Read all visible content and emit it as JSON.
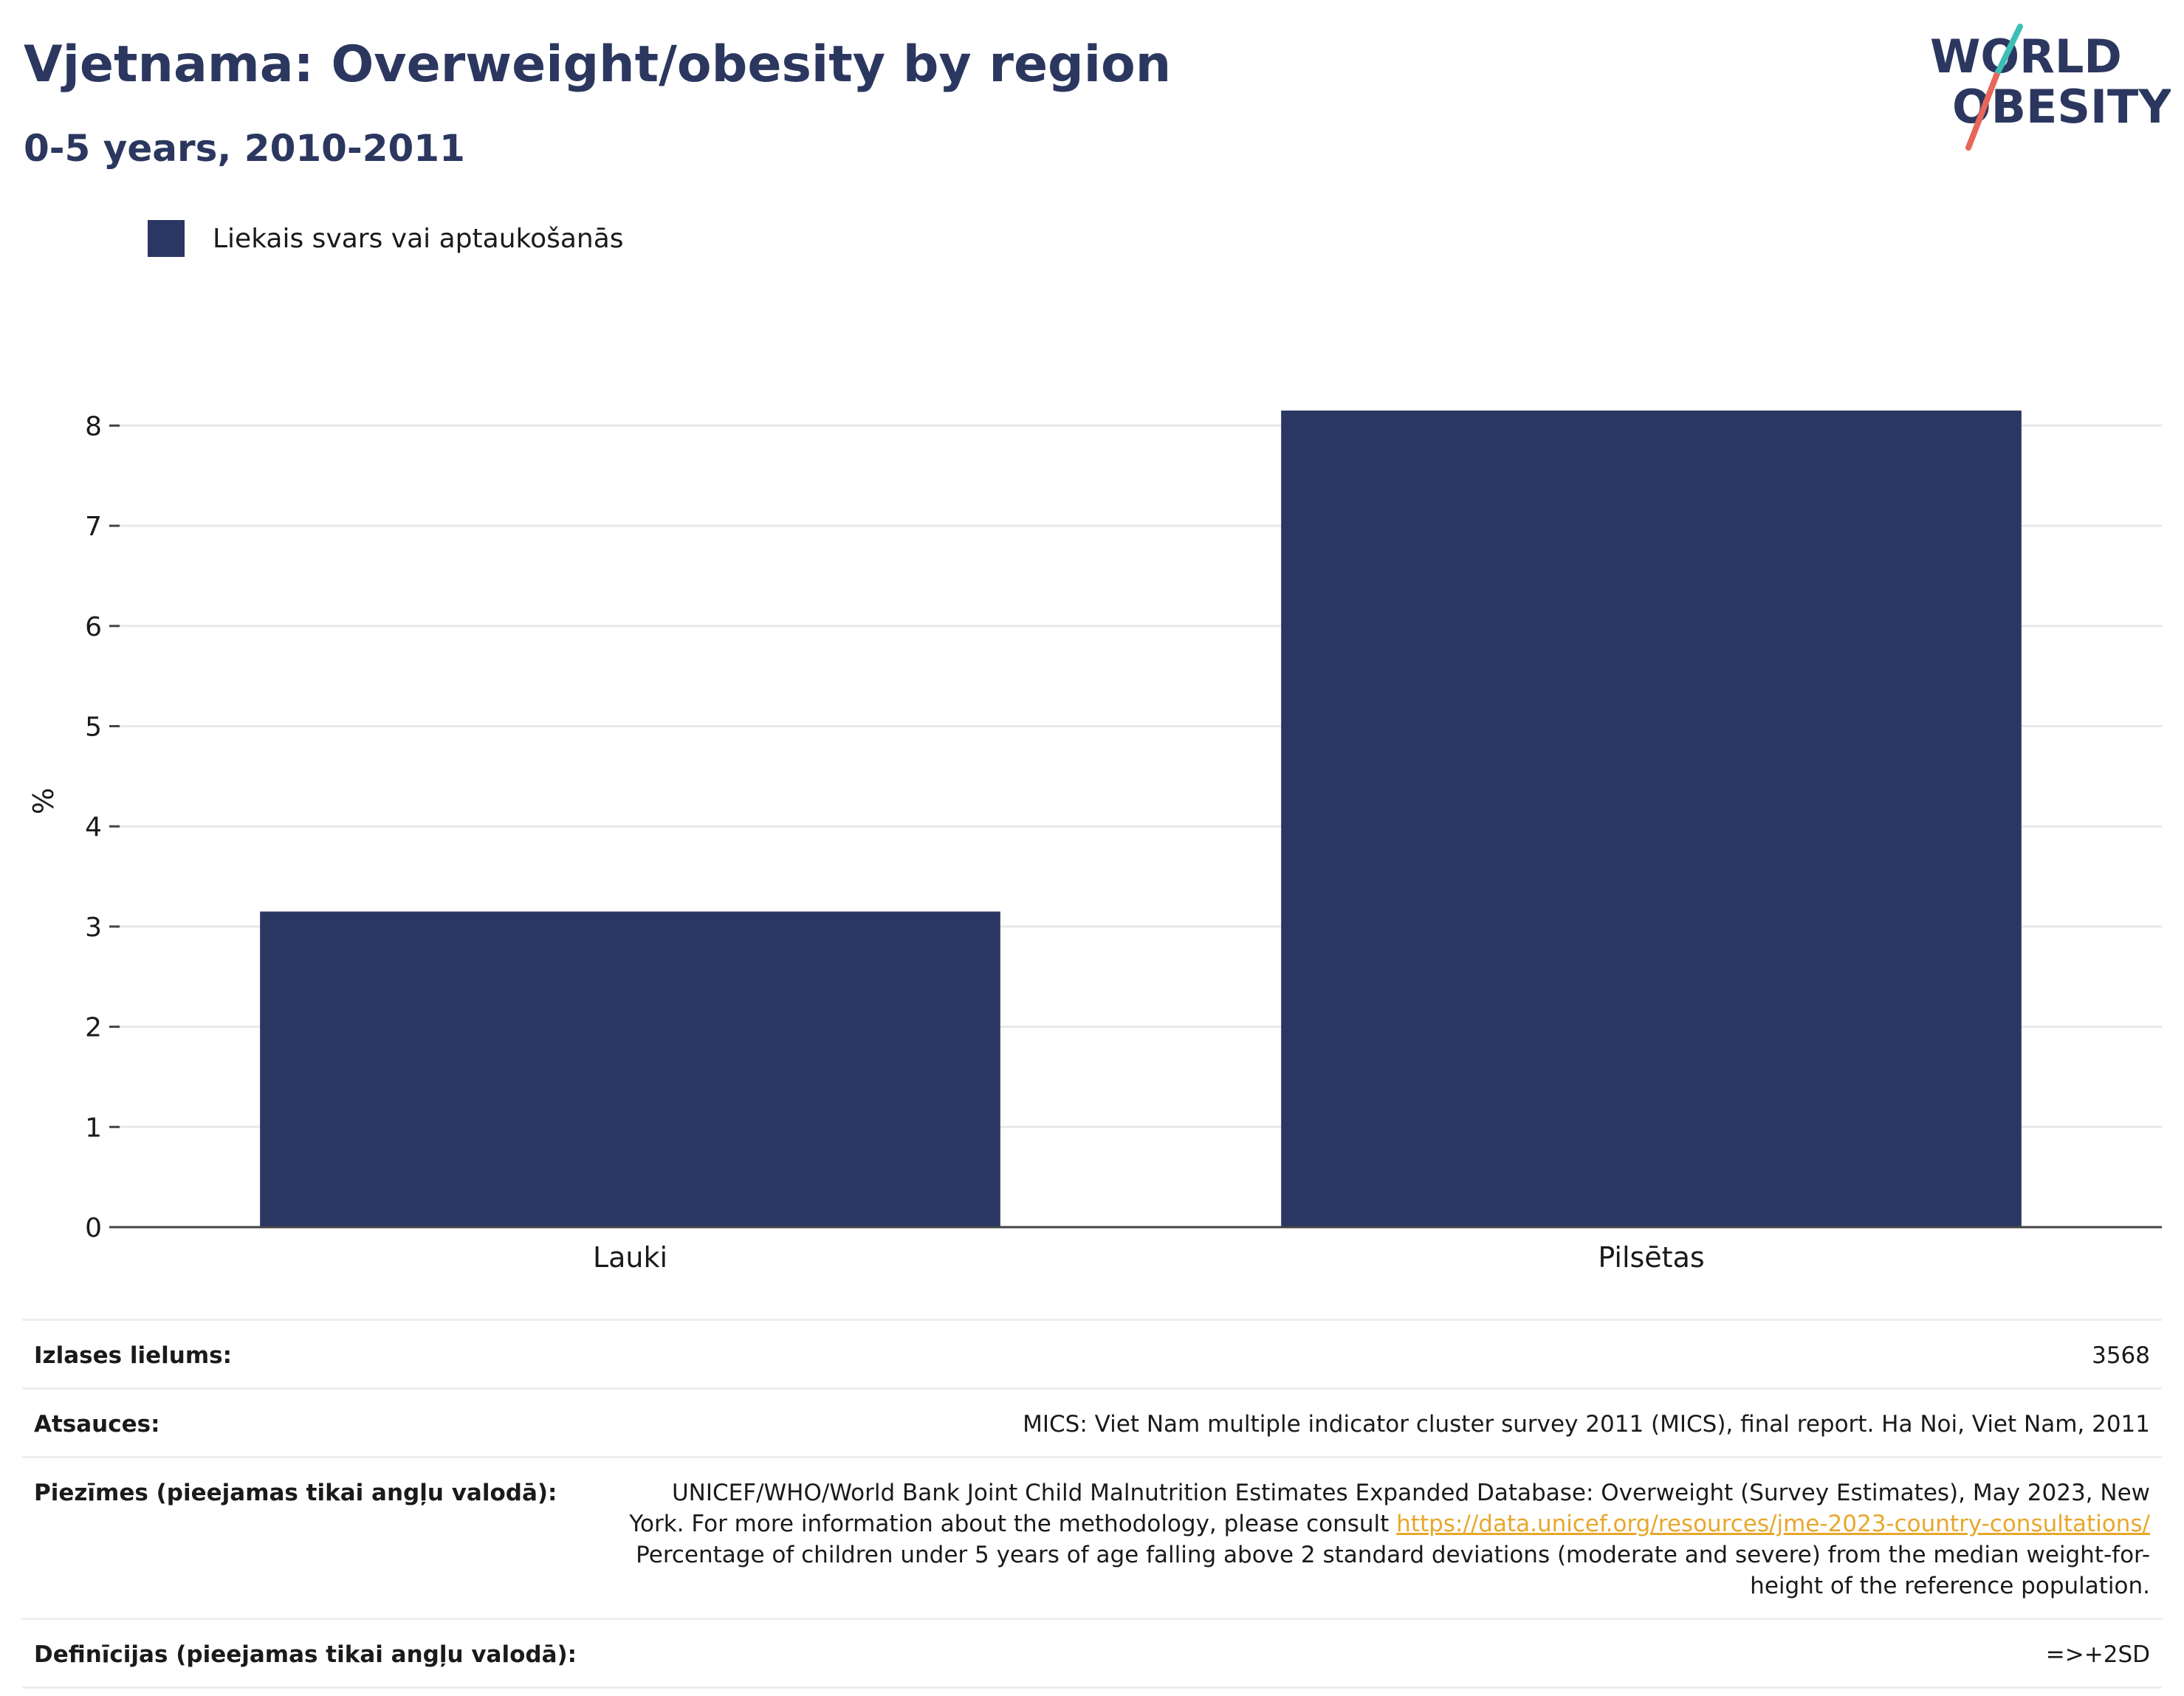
{
  "header": {
    "title": "Vjetnama: Overweight/obesity by region",
    "subtitle": "0-5 years, 2010-2011"
  },
  "logo": {
    "line1": "WORLD",
    "line2": "OBESITY",
    "slash_top_color": "#3bbfb6",
    "slash_bottom_color": "#e8665a",
    "text_color": "#2b375f"
  },
  "colors": {
    "bar": "#2b3763",
    "title": "#2b375f",
    "link": "#e8a72b",
    "grid": "#e8e8e8"
  },
  "chart_data": {
    "type": "bar",
    "categories": [
      "Lauki",
      "Pilsētas"
    ],
    "series": [
      {
        "name": "Liekais svars vai aptaukošanās",
        "values": [
          3.15,
          8.15
        ]
      }
    ],
    "ylabel": "%",
    "ylim": [
      0,
      8.5
    ],
    "yticks": [
      "0",
      "1",
      "2",
      "3",
      "4",
      "5",
      "6",
      "7",
      "8"
    ],
    "grid": true,
    "legend": "top-left"
  },
  "info": {
    "sample_label": "Izlases lielums:",
    "sample_value": "3568",
    "sources_label": "Atsauces:",
    "sources_value": "MICS: Viet Nam multiple indicator cluster survey 2011 (MICS), final report. Ha Noi, Viet Nam, 2011",
    "notes_label": "Piezīmes (pieejamas tikai angļu valodā):",
    "notes_text_1": "UNICEF/WHO/World Bank Joint Child Malnutrition Estimates Expanded Database: Overweight (Survey Estimates), May 2023, New York. For more information about the methodology, please consult",
    "notes_link": "https://data.unicef.org/resources/jme-2023-country-consultations/",
    "notes_text_2": "Percentage of children under 5 years of age falling above 2 standard deviations (moderate and severe) from the median weight-for-height of the reference population.",
    "definitions_label": "Definīcijas (pieejamas tikai angļu valodā):",
    "definitions_value": "=>+2SD"
  }
}
